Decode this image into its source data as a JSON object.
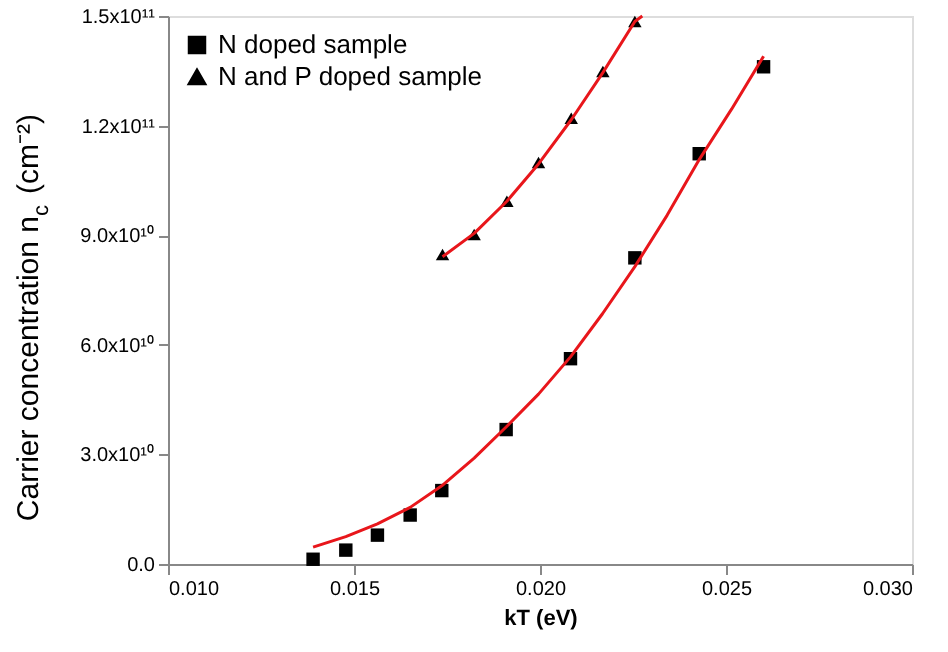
{
  "chart_data": {
    "type": "scatter",
    "xlabel": "kT (eV)",
    "ylabel": "Carrier concentration n$_{c}$ (cm⁻²)",
    "xlim": [
      0.01,
      0.03
    ],
    "xticks": [
      {
        "value": 0.01,
        "label": "0.010"
      },
      {
        "value": 0.015,
        "label": "0.015"
      },
      {
        "value": 0.02,
        "label": "0.020"
      },
      {
        "value": 0.025,
        "label": "0.025"
      },
      {
        "value": 0.03,
        "label": "0.030"
      }
    ],
    "ylim": [
      0,
      150000000000.0
    ],
    "yticks": [
      {
        "value": 0,
        "label": "0.0"
      },
      {
        "value": 30000000000.0,
        "label": "3.0x10¹⁰"
      },
      {
        "value": 60000000000.0,
        "label": "6.0x10¹⁰"
      },
      {
        "value": 90000000000.0,
        "label": "9.0x10¹⁰"
      },
      {
        "value": 120000000000.0,
        "label": "1.2x10¹¹"
      },
      {
        "value": 150000000000.0,
        "label": "1.5x10¹¹"
      }
    ],
    "grid": false,
    "legend": "top left",
    "series": [
      {
        "name": "N doped sample",
        "marker": "square",
        "color": "#000000",
        "x": [
          0.0139,
          0.01478,
          0.01563,
          0.01651,
          0.01736,
          0.01909,
          0.02082,
          0.02255,
          0.02428,
          0.02601
        ],
        "values": [
          1300000000.0,
          3800000000.0,
          7900000000.0,
          13400000000.0,
          20100000000.0,
          36800000000.0,
          56200000000.0,
          83800000000.0,
          112300000000.0,
          136100000000.0
        ]
      },
      {
        "name": "N and P doped sample",
        "marker": "triangle",
        "color": "#000000",
        "x": [
          0.01738,
          0.01823,
          0.01911,
          0.01996,
          0.02084,
          0.02169,
          0.02255
        ],
        "values": [
          84700000000.0,
          90200000000.0,
          99300000000.0,
          109900000000.0,
          122000000000.0,
          134800000000.0,
          148500000000.0
        ]
      },
      {
        "type": "line",
        "marker": "none",
        "color": "#e8161b",
        "x": [
          0.0139,
          0.01478,
          0.01563,
          0.01651,
          0.01736,
          0.01823,
          0.01909,
          0.01996,
          0.02082,
          0.02168,
          0.02255,
          0.02342,
          0.02428,
          0.02515,
          0.02601
        ],
        "values": [
          4600000000.0,
          7500000000.0,
          11000000000.0,
          15500000000.0,
          21400000000.0,
          29000000000.0,
          37500000000.0,
          46500000000.0,
          56700000000.0,
          68500000000.0,
          81400000000.0,
          95500000000.0,
          110700000000.0,
          124500000000.0,
          139000000000.0
        ]
      },
      {
        "type": "line",
        "marker": "none",
        "color": "#e8161b",
        "x": [
          0.01738,
          0.01823,
          0.01911,
          0.01996,
          0.02084,
          0.02169,
          0.02255,
          0.02275
        ],
        "values": [
          84100000000.0,
          90500000000.0,
          99300000000.0,
          109500000000.0,
          121600000000.0,
          134500000000.0,
          148500000000.0,
          150000000000.0
        ]
      }
    ]
  }
}
